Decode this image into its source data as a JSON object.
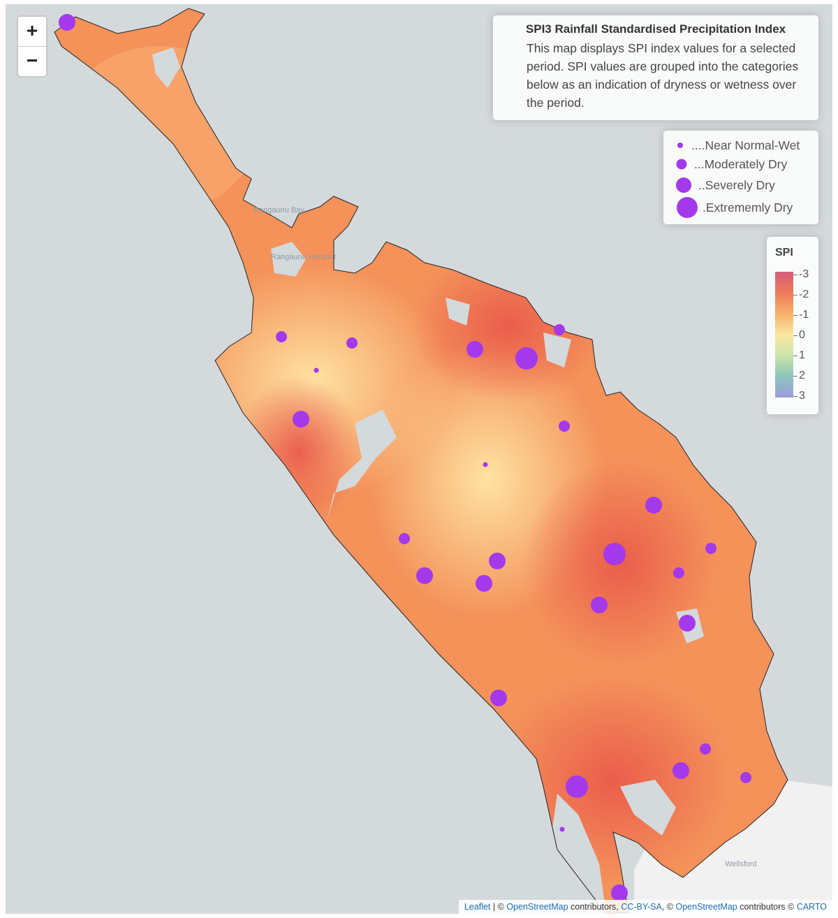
{
  "map": {
    "zoom_in_label": "+",
    "zoom_out_label": "−",
    "info": {
      "title": "SPI3 Rainfall Standardised Precipitation Index",
      "description": "This map displays SPI index values for a selected period. SPI values are grouped into the categories below as an indication of dryness or wetness over the period."
    },
    "legend": [
      {
        "label": "....Near Normal-Wet"
      },
      {
        "label": "...Moderately Dry"
      },
      {
        "label": "..Severely Dry"
      },
      {
        "label": ".Extrememly Dry"
      }
    ],
    "spi_scale": {
      "title": "SPI",
      "labels": [
        "-3",
        "-2",
        "-1",
        "0",
        "1",
        "2",
        "3"
      ]
    },
    "place_labels": [
      "Rangaunu Bay",
      "Rangaunu Harbour",
      "Wellsford"
    ],
    "attribution": {
      "leaflet": "Leaflet",
      "sep1": " | © ",
      "osm1": "OpenStreetMap",
      "contrib1": " contributors, ",
      "ccbysa": "CC-BY-SA",
      "sep2": ", © ",
      "osm2": "OpenStreetMap",
      "contrib2": " contributors © ",
      "carto": "CARTO"
    },
    "colors": {
      "marker": "#a339eb",
      "land": "#f4925a",
      "water": "#d4d9dc"
    }
  }
}
